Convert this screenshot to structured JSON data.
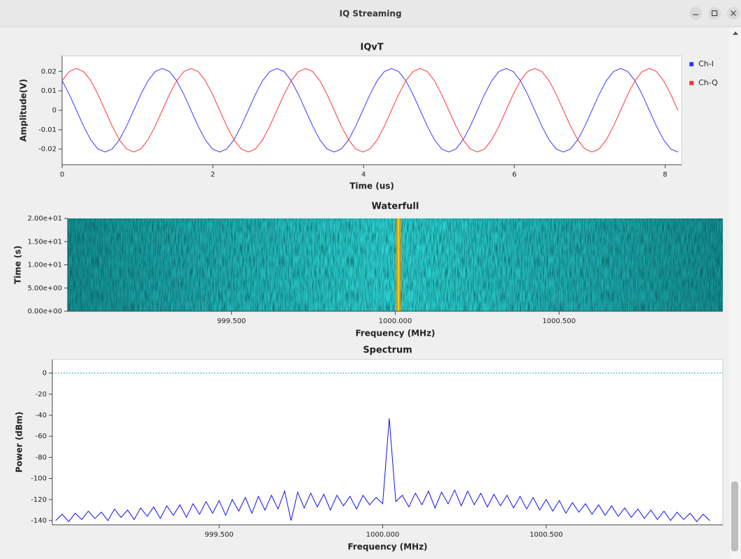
{
  "window": {
    "title": "IQ Streaming"
  },
  "chart_data": [
    {
      "type": "line",
      "title": "IQvT",
      "xlabel": "Time (us)",
      "ylabel": "Amplitude(V)",
      "xlim": [
        0,
        8.22
      ],
      "ylim": [
        -0.028,
        0.028
      ],
      "xticks": [
        0,
        2,
        4,
        6,
        8
      ],
      "yticks": [
        0.02,
        0.01,
        0,
        -0.01,
        -0.02
      ],
      "legend": "right",
      "x": [
        0,
        0.095,
        0.19,
        0.285,
        0.38,
        0.475,
        0.57,
        0.665,
        0.76,
        0.855,
        0.95,
        1.045,
        1.14,
        1.235,
        1.33,
        1.425,
        1.52,
        1.615,
        1.71,
        1.805,
        1.9,
        1.995,
        2.09,
        2.185,
        2.28,
        2.375,
        2.47,
        2.565,
        2.66,
        2.755,
        2.85,
        2.945,
        3.04,
        3.135,
        3.23,
        3.325,
        3.42,
        3.515,
        3.61,
        3.705,
        3.8,
        3.895,
        3.99,
        4.085,
        4.18,
        4.275,
        4.37,
        4.465,
        4.56,
        4.655,
        4.75,
        4.845,
        4.94,
        5.035,
        5.13,
        5.225,
        5.32,
        5.415,
        5.51,
        5.605,
        5.7,
        5.795,
        5.89,
        5.985,
        6.08,
        6.175,
        6.27,
        6.365,
        6.46,
        6.555,
        6.65,
        6.745,
        6.84,
        6.935,
        7.03,
        7.125,
        7.22,
        7.315,
        7.41,
        7.505,
        7.6,
        7.695,
        7.79,
        7.885,
        7.98,
        8.075,
        8.17
      ],
      "series": [
        {
          "name": "Ch-I",
          "color": "#3838ff",
          "values": [
            0.0152,
            0.0082,
            0,
            -0.0082,
            -0.0152,
            -0.0199,
            -0.0215,
            -0.0199,
            -0.0152,
            -0.0082,
            0,
            0.0082,
            0.0152,
            0.0199,
            0.0215,
            0.0199,
            0.0152,
            0.0082,
            0,
            -0.0082,
            -0.0152,
            -0.0199,
            -0.0215,
            -0.0199,
            -0.0152,
            -0.0082,
            0,
            0.0082,
            0.0152,
            0.0199,
            0.0215,
            0.0199,
            0.0152,
            0.0082,
            0,
            -0.0082,
            -0.0152,
            -0.0199,
            -0.0215,
            -0.0199,
            -0.0152,
            -0.0082,
            0,
            0.0082,
            0.0152,
            0.0199,
            0.0215,
            0.0199,
            0.0152,
            0.0082,
            0,
            -0.0082,
            -0.0152,
            -0.0199,
            -0.0215,
            -0.0199,
            -0.0152,
            -0.0082,
            0,
            0.0082,
            0.0152,
            0.0199,
            0.0215,
            0.0199,
            0.0152,
            0.0082,
            0,
            -0.0082,
            -0.0152,
            -0.0199,
            -0.0215,
            -0.0199,
            -0.0152,
            -0.0082,
            0,
            0.0082,
            0.0152,
            0.0199,
            0.0215,
            0.0199,
            0.0152,
            0.0082,
            0,
            -0.0082,
            -0.0152,
            -0.0199,
            -0.0215
          ]
        },
        {
          "name": "Ch-Q",
          "color": "#ff3838",
          "values": [
            0.0152,
            0.0199,
            0.0215,
            0.0199,
            0.0152,
            0.0082,
            0,
            -0.0082,
            -0.0152,
            -0.0199,
            -0.0215,
            -0.0199,
            -0.0152,
            -0.0082,
            0,
            0.0082,
            0.0152,
            0.0199,
            0.0215,
            0.0199,
            0.0152,
            0.0082,
            0,
            -0.0082,
            -0.0152,
            -0.0199,
            -0.0215,
            -0.0199,
            -0.0152,
            -0.0082,
            0,
            0.0082,
            0.0152,
            0.0199,
            0.0215,
            0.0199,
            0.0152,
            0.0082,
            0,
            -0.0082,
            -0.0152,
            -0.0199,
            -0.0215,
            -0.0199,
            -0.0152,
            -0.0082,
            0,
            0.0082,
            0.0152,
            0.0199,
            0.0215,
            0.0199,
            0.0152,
            0.0082,
            0,
            -0.0082,
            -0.0152,
            -0.0199,
            -0.0215,
            -0.0199,
            -0.0152,
            -0.0082,
            0,
            0.0082,
            0.0152,
            0.0199,
            0.0215,
            0.0199,
            0.0152,
            0.0082,
            0,
            -0.0082,
            -0.0152,
            -0.0199,
            -0.0215,
            -0.0199,
            -0.0152,
            -0.0082,
            0,
            0.0082,
            0.0152,
            0.0199,
            0.0215,
            0.0199,
            0.0152,
            0.0082,
            0
          ]
        }
      ]
    },
    {
      "type": "waterfall",
      "title": "Waterfull",
      "xlabel": "Frequency (MHz)",
      "ylabel": "Time (s)",
      "xlim": [
        999.0,
        1001.0
      ],
      "ylim": [
        0,
        20
      ],
      "xticks": [
        {
          "value": 999.5,
          "label": "999.500"
        },
        {
          "value": 1000,
          "label": "1000.000"
        },
        {
          "value": 1000.5,
          "label": "1000.500"
        }
      ],
      "yticks": [
        {
          "value": 20,
          "label": "2.00e+01"
        },
        {
          "value": 15,
          "label": "1.50e+01"
        },
        {
          "value": 10,
          "label": "1.00e+01"
        },
        {
          "value": 5,
          "label": "5.00e+00"
        },
        {
          "value": 0,
          "label": "0.00e+00"
        }
      ],
      "colormap": [
        "#148f91",
        "#2fd4d4",
        "#148f91"
      ],
      "peak_x": 1000.01,
      "peak_colors": [
        "#ff8a00",
        "#ffd200"
      ]
    },
    {
      "type": "line",
      "title": "Spectrum",
      "xlabel": "Frequency (MHz)",
      "ylabel": "Power (dBm)",
      "xlim": [
        998.99,
        1001.04
      ],
      "ylim": [
        -144,
        13
      ],
      "xticks": [
        {
          "value": 999.5,
          "label": "999.500"
        },
        {
          "value": 1000,
          "label": "1000.000"
        },
        {
          "value": 1000.5,
          "label": "1000.500"
        }
      ],
      "yticks": [
        0,
        -20,
        -40,
        -60,
        -80,
        -100,
        -120,
        -140
      ],
      "reference_line": 0,
      "reference_color": "#2aa5a5",
      "color": "#1010ee",
      "x": [
        999,
        999.02,
        999.04,
        999.06,
        999.08,
        999.1,
        999.12,
        999.14,
        999.16,
        999.18,
        999.2,
        999.22,
        999.24,
        999.26,
        999.28,
        999.3,
        999.32,
        999.34,
        999.36,
        999.38,
        999.4,
        999.42,
        999.44,
        999.46,
        999.48,
        999.5,
        999.52,
        999.54,
        999.56,
        999.58,
        999.6,
        999.62,
        999.64,
        999.66,
        999.68,
        999.7,
        999.72,
        999.74,
        999.76,
        999.78,
        999.8,
        999.82,
        999.84,
        999.86,
        999.88,
        999.9,
        999.92,
        999.94,
        999.96,
        999.98,
        1000,
        1000.02,
        1000.04,
        1000.06,
        1000.08,
        1000.1,
        1000.12,
        1000.14,
        1000.16,
        1000.18,
        1000.2,
        1000.22,
        1000.24,
        1000.26,
        1000.28,
        1000.3,
        1000.32,
        1000.34,
        1000.36,
        1000.38,
        1000.4,
        1000.42,
        1000.44,
        1000.46,
        1000.48,
        1000.5,
        1000.52,
        1000.54,
        1000.56,
        1000.58,
        1000.6,
        1000.62,
        1000.64,
        1000.66,
        1000.68,
        1000.7,
        1000.72,
        1000.74,
        1000.76,
        1000.78,
        1000.8,
        1000.82,
        1000.84,
        1000.86,
        1000.88,
        1000.9,
        1000.92,
        1000.94,
        1000.96,
        1000.98,
        1001
      ],
      "values": [
        -140,
        -134,
        -141,
        -133,
        -139,
        -131,
        -138,
        -132,
        -140,
        -129,
        -137,
        -130,
        -139,
        -128,
        -136,
        -127,
        -138,
        -126,
        -135,
        -125,
        -137,
        -124,
        -134,
        -122,
        -133,
        -121,
        -135,
        -120,
        -131,
        -118,
        -133,
        -117,
        -130,
        -116,
        -129,
        -112,
        -140,
        -113,
        -128,
        -114,
        -127,
        -115,
        -130,
        -116,
        -126,
        -117,
        -129,
        -116,
        -125,
        -118,
        -124,
        -43,
        -122,
        -116,
        -127,
        -114,
        -125,
        -112,
        -128,
        -113,
        -124,
        -111,
        -126,
        -112,
        -125,
        -114,
        -127,
        -115,
        -126,
        -116,
        -128,
        -117,
        -129,
        -118,
        -130,
        -120,
        -131,
        -121,
        -133,
        -123,
        -132,
        -124,
        -134,
        -125,
        -135,
        -126,
        -136,
        -128,
        -137,
        -129,
        -138,
        -130,
        -139,
        -131,
        -140,
        -132,
        -139,
        -133,
        -141,
        -134,
        -140
      ]
    }
  ]
}
